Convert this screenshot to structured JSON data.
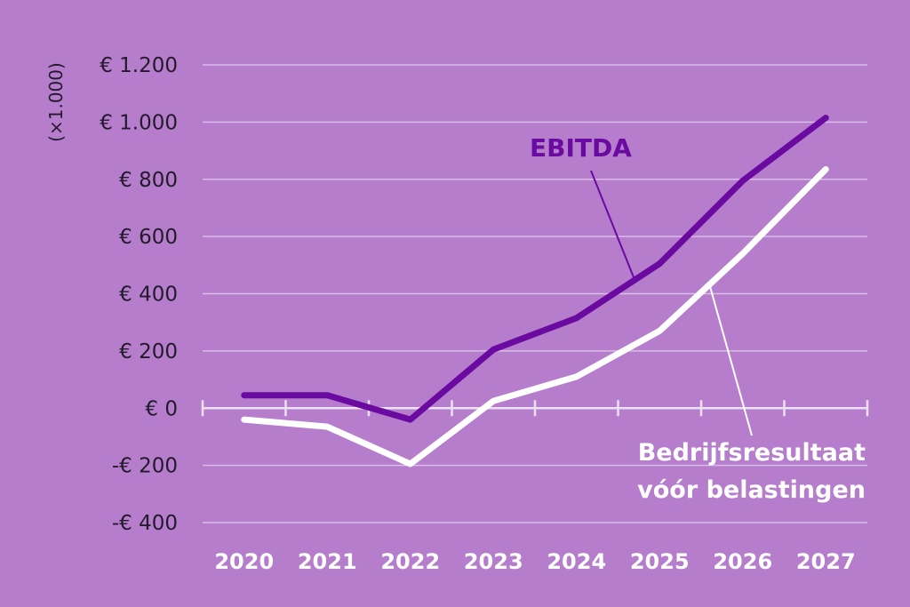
{
  "chart_data": {
    "type": "line",
    "unit_label": "(×1.000)",
    "categories": [
      "2020",
      "2021",
      "2022",
      "2023",
      "2024",
      "2025",
      "2026",
      "2027"
    ],
    "ylim": [
      -400,
      1200
    ],
    "yticks": [
      -400,
      -200,
      0,
      200,
      400,
      600,
      800,
      1000,
      1200
    ],
    "ytick_labels": [
      "-€ 400",
      "-€ 200",
      "€ 0",
      "€ 200",
      "€ 400",
      "€ 600",
      "€ 800",
      "€ 1.000",
      "€ 1.200"
    ],
    "grid": true,
    "series": [
      {
        "name": "EBITDA",
        "color": "#6a0aa0",
        "values": [
          45,
          45,
          -40,
          205,
          315,
          505,
          795,
          1015
        ]
      },
      {
        "name_lines": [
          "Bedrijfsresultaat",
          "vóór belastingen"
        ],
        "color": "#ffffff",
        "values": [
          -40,
          -65,
          -195,
          25,
          110,
          270,
          540,
          835
        ]
      }
    ]
  }
}
